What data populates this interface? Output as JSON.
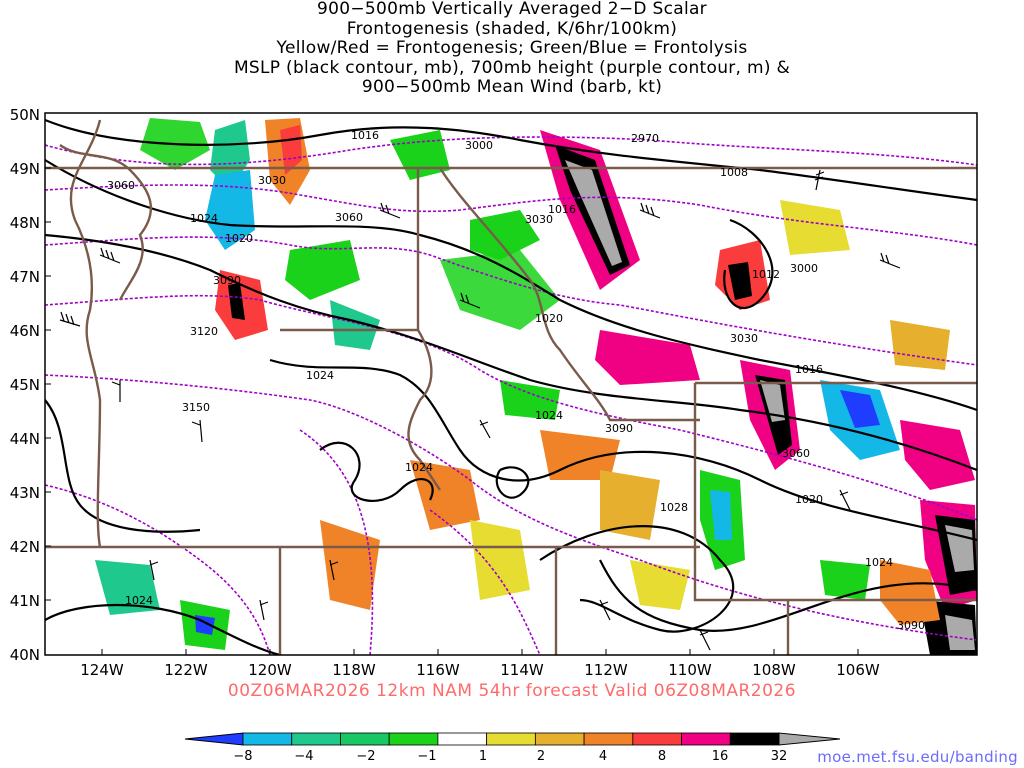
{
  "title_lines": [
    "900−500mb Vertically Averaged 2−D Scalar",
    "Frontogenesis (shaded, K/6hr/100km)",
    "Yellow/Red = Frontogenesis;  Green/Blue = Frontolysis",
    "MSLP (black contour, mb), 700mb height (purple contour, m) &",
    "900−500mb Mean Wind (barb, kt)"
  ],
  "subtitle": "00Z06MAR2026 12km NAM 54hr forecast Valid 06Z08MAR2026",
  "site_label": "moe.met.fsu.edu/banding",
  "map": {
    "lat_labels": [
      "50N",
      "49N",
      "48N",
      "47N",
      "46N",
      "45N",
      "44N",
      "43N",
      "42N",
      "41N",
      "40N"
    ],
    "lon_labels": [
      "124W",
      "122W",
      "120W",
      "118W",
      "116W",
      "114W",
      "112W",
      "110W",
      "108W",
      "106W"
    ],
    "mslp_labels": [
      "1016",
      "1008",
      "1024",
      "1020",
      "1016",
      "1012",
      "1020",
      "1024",
      "1016",
      "1024",
      "1024",
      "1020",
      "1028",
      "1024",
      "1024"
    ],
    "height_labels": [
      "2970",
      "3000",
      "3060",
      "3030",
      "3060",
      "3030",
      "3000",
      "3090",
      "3120",
      "3030",
      "3150",
      "3090",
      "3060",
      "3090"
    ]
  },
  "colorbar": {
    "tick_labels": [
      "−8",
      "−4",
      "−2",
      "−1",
      "1",
      "2",
      "4",
      "8",
      "16",
      "32"
    ],
    "colors": [
      "#1f3dff",
      "#14b8e6",
      "#1fc88c",
      "#19c864",
      "#19d219",
      "#ffffff",
      "#e6dc32",
      "#e6af2d",
      "#f08228",
      "#fa3c3c",
      "#f00082",
      "#000000",
      "#aaaaaa"
    ]
  },
  "colors": {
    "mslp": "#000000",
    "height": "#a000c8",
    "border": "#7a5a4a",
    "subtitle": "#ff6a6a",
    "site": "#6b6bff"
  }
}
